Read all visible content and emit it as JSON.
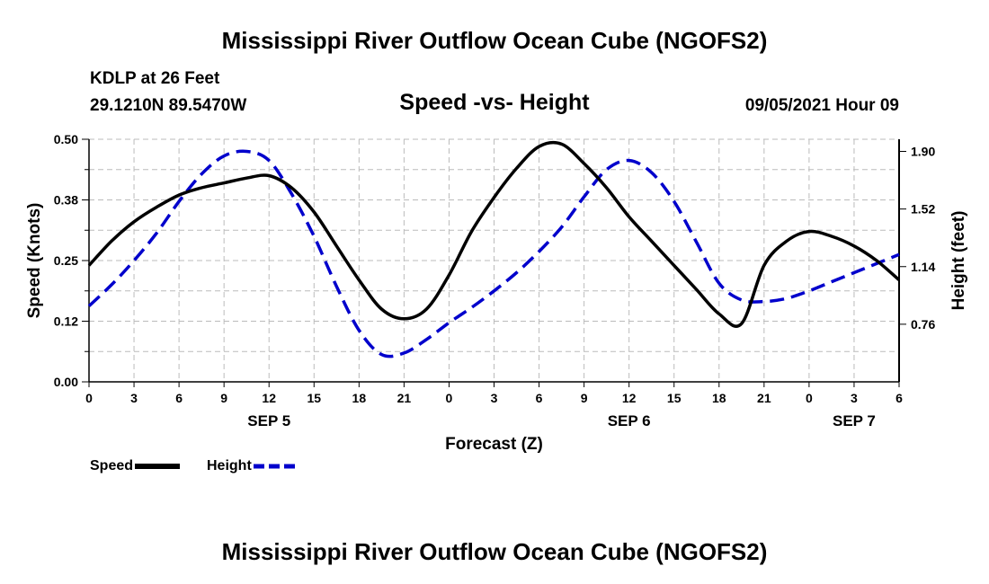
{
  "header": {
    "title": "Mississippi River Outflow Ocean Cube (NGOFS2)",
    "station": "KDLP at 26 Feet",
    "coords": "29.1210N  89.5470W",
    "subtitle": "Speed -vs- Height",
    "datetime": "09/05/2021 Hour 09"
  },
  "footer": {
    "title": "Mississippi River Outflow Ocean Cube (NGOFS2)"
  },
  "colors": {
    "speed": "#000000",
    "height": "#0000cc",
    "grid": "#bbbbbb"
  },
  "chart_data": {
    "type": "line",
    "title": "Speed -vs- Height",
    "xlabel": "Forecast (Z)",
    "ylabel": "Speed (Knots)",
    "y2label": "Height (feet)",
    "xlim": [
      0,
      54
    ],
    "ylim": [
      0,
      0.5
    ],
    "y2lim": [
      0.38,
      1.98
    ],
    "x_ticks": [
      {
        "x": 0,
        "label": "0"
      },
      {
        "x": 3,
        "label": "3"
      },
      {
        "x": 6,
        "label": "6"
      },
      {
        "x": 9,
        "label": "9"
      },
      {
        "x": 12,
        "label": "12"
      },
      {
        "x": 15,
        "label": "15"
      },
      {
        "x": 18,
        "label": "18"
      },
      {
        "x": 21,
        "label": "21"
      },
      {
        "x": 24,
        "label": "0"
      },
      {
        "x": 27,
        "label": "3"
      },
      {
        "x": 30,
        "label": "6"
      },
      {
        "x": 33,
        "label": "9"
      },
      {
        "x": 36,
        "label": "12"
      },
      {
        "x": 39,
        "label": "15"
      },
      {
        "x": 42,
        "label": "18"
      },
      {
        "x": 45,
        "label": "21"
      },
      {
        "x": 48,
        "label": "0"
      },
      {
        "x": 51,
        "label": "3"
      },
      {
        "x": 54,
        "label": "6"
      }
    ],
    "day_labels": [
      {
        "x": 12,
        "label": "SEP 5"
      },
      {
        "x": 36,
        "label": "SEP 6"
      },
      {
        "x": 51,
        "label": "SEP 7"
      }
    ],
    "y_ticks": [
      {
        "value": 0.0,
        "label": "0.00"
      },
      {
        "value": 0.125,
        "label": "0.12"
      },
      {
        "value": 0.25,
        "label": "0.25"
      },
      {
        "value": 0.375,
        "label": "0.38"
      },
      {
        "value": 0.5,
        "label": "0.50"
      }
    ],
    "y2_ticks": [
      {
        "value": 0.76,
        "label": "0.76"
      },
      {
        "value": 1.14,
        "label": "1.14"
      },
      {
        "value": 1.52,
        "label": "1.52"
      },
      {
        "value": 1.9,
        "label": "1.90"
      }
    ],
    "x": [
      0,
      1.5,
      3,
      4.5,
      6,
      7.5,
      9,
      10.5,
      12,
      13.5,
      15,
      16.5,
      18,
      19.5,
      21,
      22.5,
      24,
      25.5,
      27,
      28.5,
      30,
      31.5,
      33,
      34.5,
      36,
      37.5,
      39,
      40.5,
      42,
      43.5,
      45,
      46.5,
      48,
      49.5,
      51,
      52.5,
      54
    ],
    "series": [
      {
        "name": "Speed",
        "axis": "left",
        "values": [
          0.24,
          0.29,
          0.33,
          0.36,
          0.385,
          0.4,
          0.41,
          0.42,
          0.425,
          0.4,
          0.35,
          0.28,
          0.21,
          0.15,
          0.13,
          0.15,
          0.22,
          0.31,
          0.38,
          0.44,
          0.485,
          0.49,
          0.45,
          0.4,
          0.34,
          0.29,
          0.24,
          0.19,
          0.14,
          0.12,
          0.24,
          0.29,
          0.31,
          0.3,
          0.28,
          0.25,
          0.21
        ]
      },
      {
        "name": "Height",
        "axis": "right",
        "values": [
          0.88,
          1.02,
          1.18,
          1.36,
          1.57,
          1.75,
          1.87,
          1.9,
          1.84,
          1.62,
          1.34,
          1.01,
          0.72,
          0.56,
          0.57,
          0.66,
          0.77,
          0.87,
          0.98,
          1.1,
          1.24,
          1.4,
          1.6,
          1.78,
          1.84,
          1.76,
          1.57,
          1.3,
          1.03,
          0.92,
          0.91,
          0.93,
          0.98,
          1.04,
          1.1,
          1.16,
          1.22
        ]
      }
    ],
    "legend": [
      "Speed",
      "Height"
    ],
    "legend_position": "bottom-left",
    "grid": true
  }
}
